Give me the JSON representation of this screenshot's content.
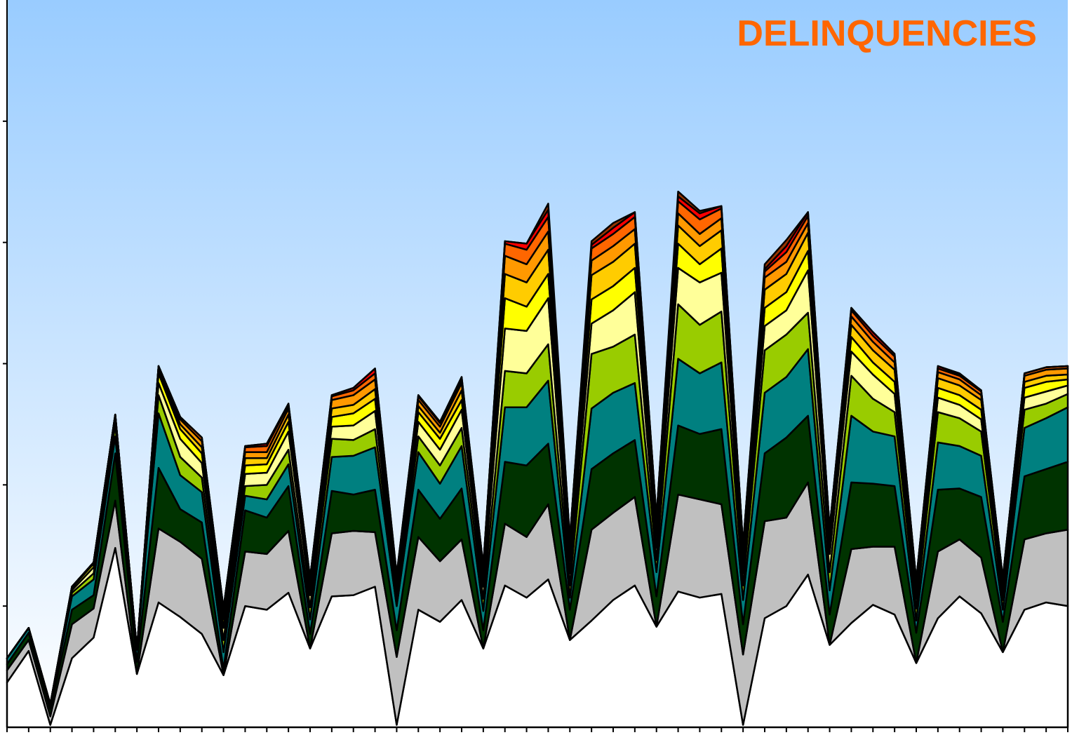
{
  "chart_data": {
    "type": "area",
    "stacked": true,
    "title": "DELINQUENCIES",
    "xlabel": "",
    "ylabel": "",
    "ylim": [
      0,
      6
    ],
    "grid": false,
    "legend": "none",
    "x": [
      1,
      2,
      3,
      4,
      5,
      6,
      7,
      8,
      9,
      10,
      11,
      12,
      13,
      14,
      15,
      16,
      17,
      18,
      19,
      20,
      21,
      22,
      23,
      24,
      25,
      26,
      27,
      28,
      29,
      30,
      31,
      32,
      33,
      34,
      35,
      36,
      37,
      38,
      39,
      40,
      41,
      42,
      43,
      44,
      45,
      46,
      47,
      48,
      49,
      50
    ],
    "series": [
      {
        "color": "#ffffff",
        "values": [
          0.37,
          0.63,
          0.02,
          0.57,
          0.74,
          1.48,
          0.44,
          1.03,
          0.91,
          0.77,
          0.43,
          1.0,
          0.97,
          1.11,
          0.65,
          1.08,
          1.09,
          1.16,
          0.02,
          0.97,
          0.87,
          1.05,
          0.65,
          1.17,
          1.07,
          1.22,
          0.72,
          0.88,
          1.05,
          1.17,
          0.83,
          1.12,
          1.07,
          1.1,
          0.02,
          0.9,
          1.0,
          1.26,
          0.68,
          0.86,
          1.01,
          0.93,
          0.53,
          0.9,
          1.08,
          0.94,
          0.62,
          0.97,
          1.03,
          1.0
        ]
      },
      {
        "color": "#c0c0c0",
        "values": [
          0.1,
          0.09,
          0.07,
          0.28,
          0.24,
          0.39,
          0.0,
          0.61,
          0.62,
          0.62,
          0.0,
          0.45,
          0.46,
          0.51,
          0.0,
          0.52,
          0.53,
          0.45,
          0.56,
          0.6,
          0.5,
          0.5,
          0.0,
          0.51,
          0.5,
          0.62,
          0.0,
          0.75,
          0.72,
          0.73,
          0.0,
          0.8,
          0.81,
          0.74,
          0.58,
          0.8,
          0.73,
          0.76,
          0.0,
          0.61,
          0.48,
          0.56,
          0.0,
          0.55,
          0.47,
          0.46,
          0.0,
          0.58,
          0.57,
          0.63
        ]
      },
      {
        "color": "#003300",
        "values": [
          0.05,
          0.06,
          0.06,
          0.12,
          0.11,
          0.39,
          0.1,
          0.5,
          0.27,
          0.3,
          0.05,
          0.34,
          0.3,
          0.37,
          0.12,
          0.35,
          0.3,
          0.35,
          0.22,
          0.39,
          0.35,
          0.42,
          0.15,
          0.51,
          0.59,
          0.5,
          0.25,
          0.5,
          0.49,
          0.47,
          0.25,
          0.57,
          0.54,
          0.62,
          0.25,
          0.56,
          0.66,
          0.55,
          0.25,
          0.55,
          0.52,
          0.5,
          0.25,
          0.51,
          0.42,
          0.5,
          0.25,
          0.52,
          0.53,
          0.56
        ]
      },
      {
        "color": "#008080",
        "values": [
          0.05,
          0.04,
          0.04,
          0.11,
          0.13,
          0.14,
          0.1,
          0.45,
          0.28,
          0.25,
          0.14,
          0.12,
          0.15,
          0.18,
          0.12,
          0.28,
          0.32,
          0.35,
          0.2,
          0.31,
          0.29,
          0.35,
          0.16,
          0.45,
          0.48,
          0.52,
          0.1,
          0.5,
          0.5,
          0.47,
          0.2,
          0.55,
          0.5,
          0.55,
          0.2,
          0.5,
          0.5,
          0.55,
          0.2,
          0.55,
          0.43,
          0.41,
          0.1,
          0.39,
          0.35,
          0.34,
          0.1,
          0.4,
          0.42,
          0.45
        ]
      },
      {
        "color": "#99cc00",
        "values": [
          0.0,
          0.0,
          0.0,
          0.03,
          0.05,
          0.1,
          0.0,
          0.15,
          0.15,
          0.12,
          0.1,
          0.08,
          0.12,
          0.12,
          0.1,
          0.15,
          0.13,
          0.15,
          0.05,
          0.13,
          0.15,
          0.15,
          0.1,
          0.3,
          0.28,
          0.3,
          0.1,
          0.45,
          0.38,
          0.4,
          0.1,
          0.45,
          0.4,
          0.42,
          0.12,
          0.35,
          0.35,
          0.3,
          0.15,
          0.33,
          0.27,
          0.2,
          0.1,
          0.25,
          0.23,
          0.2,
          0.08,
          0.15,
          0.12,
          0.11
        ]
      },
      {
        "color": "#ffff99",
        "values": [
          0.0,
          0.0,
          0.0,
          0.02,
          0.05,
          0.05,
          0.0,
          0.1,
          0.15,
          0.12,
          0.1,
          0.1,
          0.1,
          0.15,
          0.1,
          0.1,
          0.12,
          0.15,
          0.06,
          0.12,
          0.13,
          0.15,
          0.1,
          0.35,
          0.35,
          0.38,
          0.1,
          0.25,
          0.3,
          0.35,
          0.1,
          0.3,
          0.35,
          0.32,
          0.1,
          0.2,
          0.2,
          0.35,
          0.15,
          0.2,
          0.2,
          0.15,
          0.08,
          0.12,
          0.11,
          0.1,
          0.05,
          0.1,
          0.1,
          0.07
        ]
      },
      {
        "color": "#ffff00",
        "values": [
          0.0,
          0.0,
          0.0,
          0.02,
          0.03,
          0.02,
          0.0,
          0.08,
          0.08,
          0.08,
          0.07,
          0.07,
          0.07,
          0.08,
          0.05,
          0.08,
          0.1,
          0.1,
          0.04,
          0.08,
          0.09,
          0.08,
          0.05,
          0.25,
          0.2,
          0.2,
          0.1,
          0.2,
          0.2,
          0.2,
          0.1,
          0.2,
          0.15,
          0.2,
          0.07,
          0.15,
          0.15,
          0.16,
          0.08,
          0.12,
          0.1,
          0.1,
          0.05,
          0.08,
          0.08,
          0.08,
          0.05,
          0.08,
          0.08,
          0.05
        ]
      },
      {
        "color": "#ffcc00",
        "values": [
          0.0,
          0.0,
          0.0,
          0.01,
          0.01,
          0.01,
          0.0,
          0.04,
          0.04,
          0.05,
          0.04,
          0.06,
          0.05,
          0.06,
          0.04,
          0.07,
          0.07,
          0.08,
          0.04,
          0.05,
          0.05,
          0.08,
          0.05,
          0.2,
          0.2,
          0.2,
          0.07,
          0.2,
          0.2,
          0.2,
          0.06,
          0.15,
          0.15,
          0.15,
          0.08,
          0.15,
          0.15,
          0.15,
          0.06,
          0.1,
          0.1,
          0.1,
          0.05,
          0.08,
          0.08,
          0.08,
          0.04,
          0.05,
          0.05,
          0.04
        ]
      },
      {
        "color": "#ff9900",
        "values": [
          0.0,
          0.0,
          0.0,
          0.0,
          0.0,
          0.0,
          0.0,
          0.02,
          0.04,
          0.05,
          0.03,
          0.05,
          0.05,
          0.05,
          0.03,
          0.07,
          0.08,
          0.08,
          0.03,
          0.05,
          0.05,
          0.06,
          0.05,
          0.15,
          0.15,
          0.15,
          0.06,
          0.12,
          0.13,
          0.12,
          0.05,
          0.1,
          0.1,
          0.1,
          0.05,
          0.1,
          0.1,
          0.08,
          0.05,
          0.07,
          0.07,
          0.06,
          0.03,
          0.05,
          0.05,
          0.04,
          0.02,
          0.05,
          0.05,
          0.05
        ]
      },
      {
        "color": "#ff6600",
        "values": [
          0.0,
          0.0,
          0.0,
          0.0,
          0.0,
          0.0,
          0.0,
          0.0,
          0.02,
          0.03,
          0.02,
          0.04,
          0.05,
          0.03,
          0.02,
          0.03,
          0.04,
          0.05,
          0.02,
          0.03,
          0.03,
          0.03,
          0.02,
          0.1,
          0.12,
          0.12,
          0.05,
          0.1,
          0.1,
          0.1,
          0.04,
          0.1,
          0.12,
          0.08,
          0.03,
          0.05,
          0.08,
          0.06,
          0.02,
          0.05,
          0.05,
          0.05,
          0.02,
          0.03,
          0.03,
          0.03,
          0.02,
          0.02,
          0.02,
          0.02
        ]
      },
      {
        "color": "#ff0000",
        "values": [
          0.0,
          0.0,
          0.0,
          0.0,
          0.0,
          0.0,
          0.0,
          0.0,
          0.0,
          0.0,
          0.0,
          0.01,
          0.02,
          0.01,
          0.0,
          0.01,
          0.02,
          0.04,
          0.02,
          0.01,
          0.01,
          0.02,
          0.0,
          0.02,
          0.05,
          0.06,
          0.0,
          0.03,
          0.05,
          0.04,
          0.0,
          0.04,
          0.05,
          0.02,
          0.0,
          0.02,
          0.05,
          0.03,
          0.0,
          0.02,
          0.03,
          0.02,
          0.0,
          0.02,
          0.01,
          0.01,
          0.0,
          0.0,
          0.0,
          0.0
        ]
      },
      {
        "color": "#993300",
        "values": [
          0.0,
          0.0,
          0.0,
          0.0,
          0.0,
          0.0,
          0.0,
          0.0,
          0.0,
          0.0,
          0.0,
          0.0,
          0.0,
          0.0,
          0.0,
          0.0,
          0.0,
          0.0,
          0.0,
          0.0,
          0.0,
          0.0,
          0.0,
          0.0,
          0.0,
          0.05,
          0.0,
          0.03,
          0.04,
          0.0,
          0.0,
          0.04,
          0.02,
          0.0,
          0.0,
          0.04,
          0.05,
          0.0,
          0.0,
          0.0,
          0.0,
          0.0,
          0.0,
          0.0,
          0.01,
          0.0,
          0.0,
          0.0,
          0.0,
          0.0
        ]
      }
    ]
  }
}
